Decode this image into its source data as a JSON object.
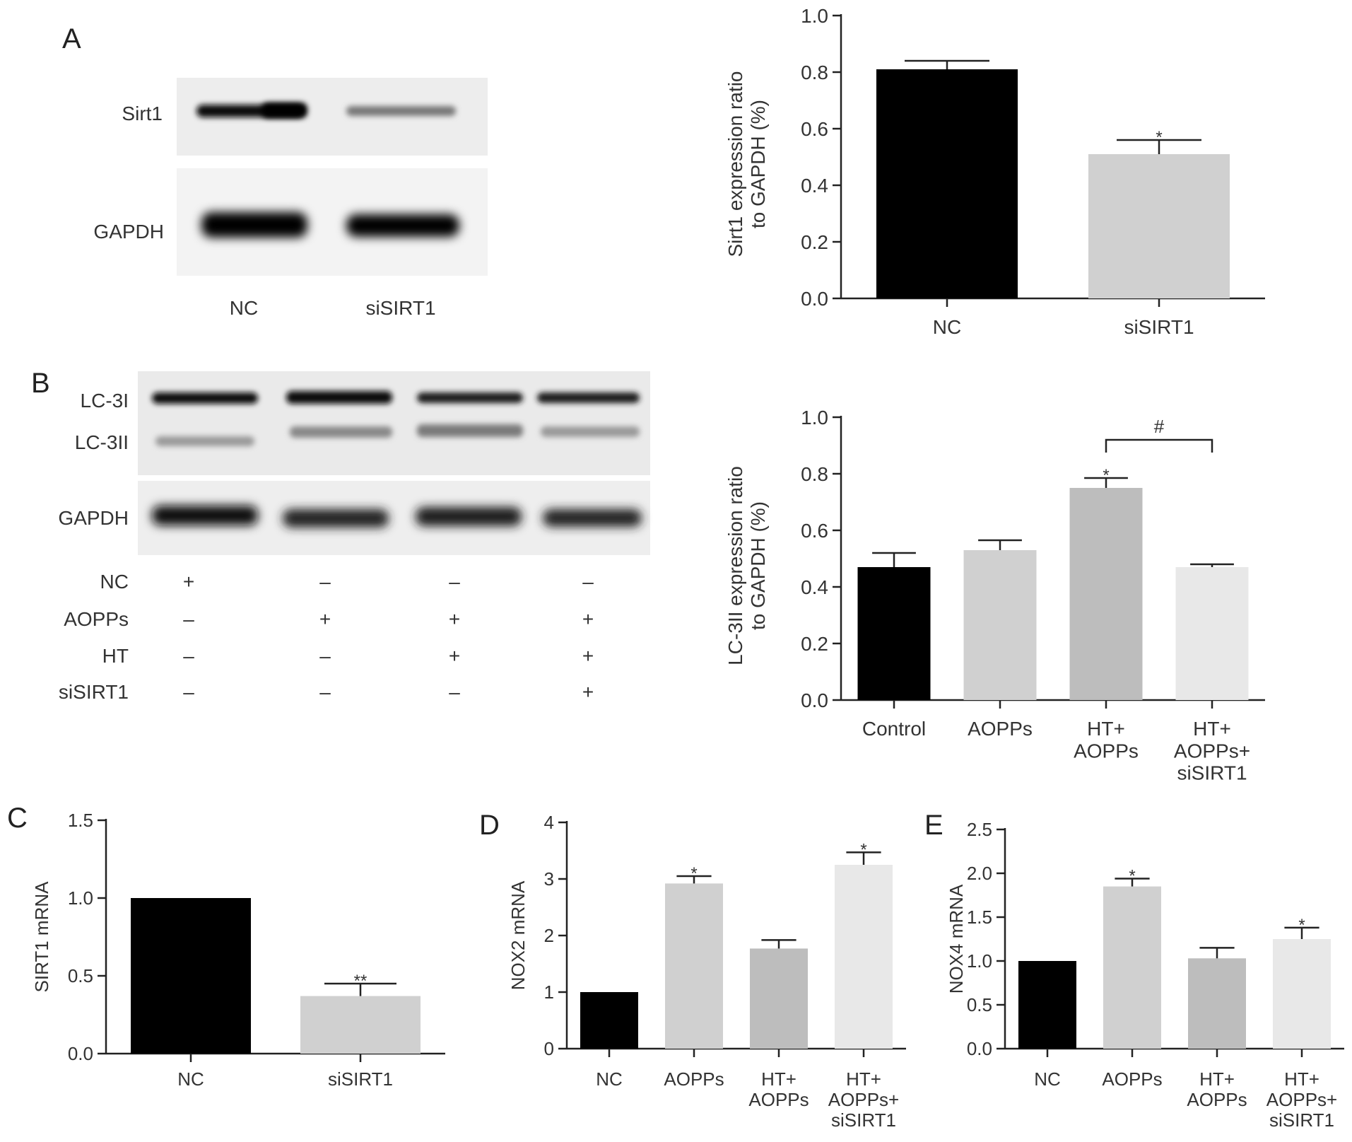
{
  "panels": {
    "A": {
      "letter": "A",
      "blot": {
        "rows": [
          "Sirt1",
          "GAPDH"
        ],
        "lanes": [
          "NC",
          "siSIRT1"
        ]
      }
    },
    "B": {
      "letter": "B",
      "blot": {
        "rows": [
          "LC-3I",
          "LC-3II",
          "GAPDH"
        ],
        "treatments": [
          {
            "label": "NC",
            "signs": [
              "+",
              "–",
              "–",
              "–"
            ]
          },
          {
            "label": "AOPPs",
            "signs": [
              "–",
              "+",
              "+",
              "+"
            ]
          },
          {
            "label": "HT",
            "signs": [
              "–",
              "–",
              "+",
              "+"
            ]
          },
          {
            "label": "siSIRT1",
            "signs": [
              "–",
              "–",
              "–",
              "+"
            ]
          }
        ]
      }
    },
    "C": {
      "letter": "C"
    },
    "D": {
      "letter": "D"
    },
    "E": {
      "letter": "E"
    }
  },
  "colors": {
    "black_bar": "#000000",
    "gray_bar_1": "#d0d0d0",
    "gray_bar_2": "#bdbdbd",
    "gray_bar_3": "#e8e8e8"
  },
  "chart_data": [
    {
      "id": "A",
      "type": "bar",
      "categories": [
        "NC",
        "siSIRT1"
      ],
      "values": [
        0.81,
        0.51
      ],
      "errors": [
        0.03,
        0.05
      ],
      "significance": [
        "",
        "*"
      ],
      "ylabel": [
        "Sirt1 expression ratio",
        "to GAPDH (%)"
      ],
      "ylim": [
        0,
        1.0
      ],
      "yticks": [
        "0.0",
        "0.2",
        "0.4",
        "0.6",
        "0.8",
        "1.0"
      ],
      "bar_colors": [
        "#000000",
        "#d0d0d0"
      ]
    },
    {
      "id": "B",
      "type": "bar",
      "categories": [
        "Control",
        "AOPPs",
        "HT+|AOPPs",
        "HT+|AOPPs+|siSIRT1"
      ],
      "values": [
        0.47,
        0.53,
        0.75,
        0.47
      ],
      "errors": [
        0.05,
        0.035,
        0.035,
        0.01
      ],
      "significance": [
        "",
        "",
        "*",
        ""
      ],
      "bracket": {
        "from": 2,
        "to": 3,
        "label": "#"
      },
      "ylabel": [
        "LC-3II expression ratio",
        "to GAPDH (%)"
      ],
      "ylim": [
        0,
        1.0
      ],
      "yticks": [
        "0.0",
        "0.2",
        "0.4",
        "0.6",
        "0.8",
        "1.0"
      ],
      "bar_colors": [
        "#000000",
        "#d0d0d0",
        "#bdbdbd",
        "#e8e8e8"
      ]
    },
    {
      "id": "C",
      "type": "bar",
      "categories": [
        "NC",
        "siSIRT1"
      ],
      "values": [
        1.0,
        0.37
      ],
      "errors": [
        0,
        0.08
      ],
      "significance": [
        "",
        "**"
      ],
      "ylabel": [
        "SIRT1 mRNA"
      ],
      "ylim": [
        0,
        1.5
      ],
      "yticks": [
        "0.0",
        "0.5",
        "1.0",
        "1.5"
      ],
      "bar_colors": [
        "#000000",
        "#d0d0d0"
      ]
    },
    {
      "id": "D",
      "type": "bar",
      "categories": [
        "NC",
        "AOPPs",
        "HT+|AOPPs",
        "HT+|AOPPs+|siSIRT1"
      ],
      "values": [
        1.0,
        2.92,
        1.77,
        3.25
      ],
      "errors": [
        0,
        0.13,
        0.15,
        0.22
      ],
      "significance": [
        "",
        "*",
        "",
        "*"
      ],
      "ylabel": [
        "NOX2 mRNA"
      ],
      "ylim": [
        0,
        4
      ],
      "yticks": [
        "0",
        "1",
        "2",
        "3",
        "4"
      ],
      "bar_colors": [
        "#000000",
        "#d0d0d0",
        "#bdbdbd",
        "#e8e8e8"
      ]
    },
    {
      "id": "E",
      "type": "bar",
      "categories": [
        "NC",
        "AOPPs",
        "HT+|AOPPs",
        "HT+|AOPPs+|siSIRT1"
      ],
      "values": [
        1.0,
        1.85,
        1.03,
        1.25
      ],
      "errors": [
        0,
        0.09,
        0.12,
        0.13
      ],
      "significance": [
        "",
        "*",
        "",
        "*"
      ],
      "ylabel": [
        "NOX4 mRNA"
      ],
      "ylim": [
        0,
        2.5
      ],
      "yticks": [
        "0.0",
        "0.5",
        "1.0",
        "1.5",
        "2.0",
        "2.5"
      ],
      "bar_colors": [
        "#000000",
        "#d0d0d0",
        "#bdbdbd",
        "#e8e8e8"
      ]
    }
  ]
}
